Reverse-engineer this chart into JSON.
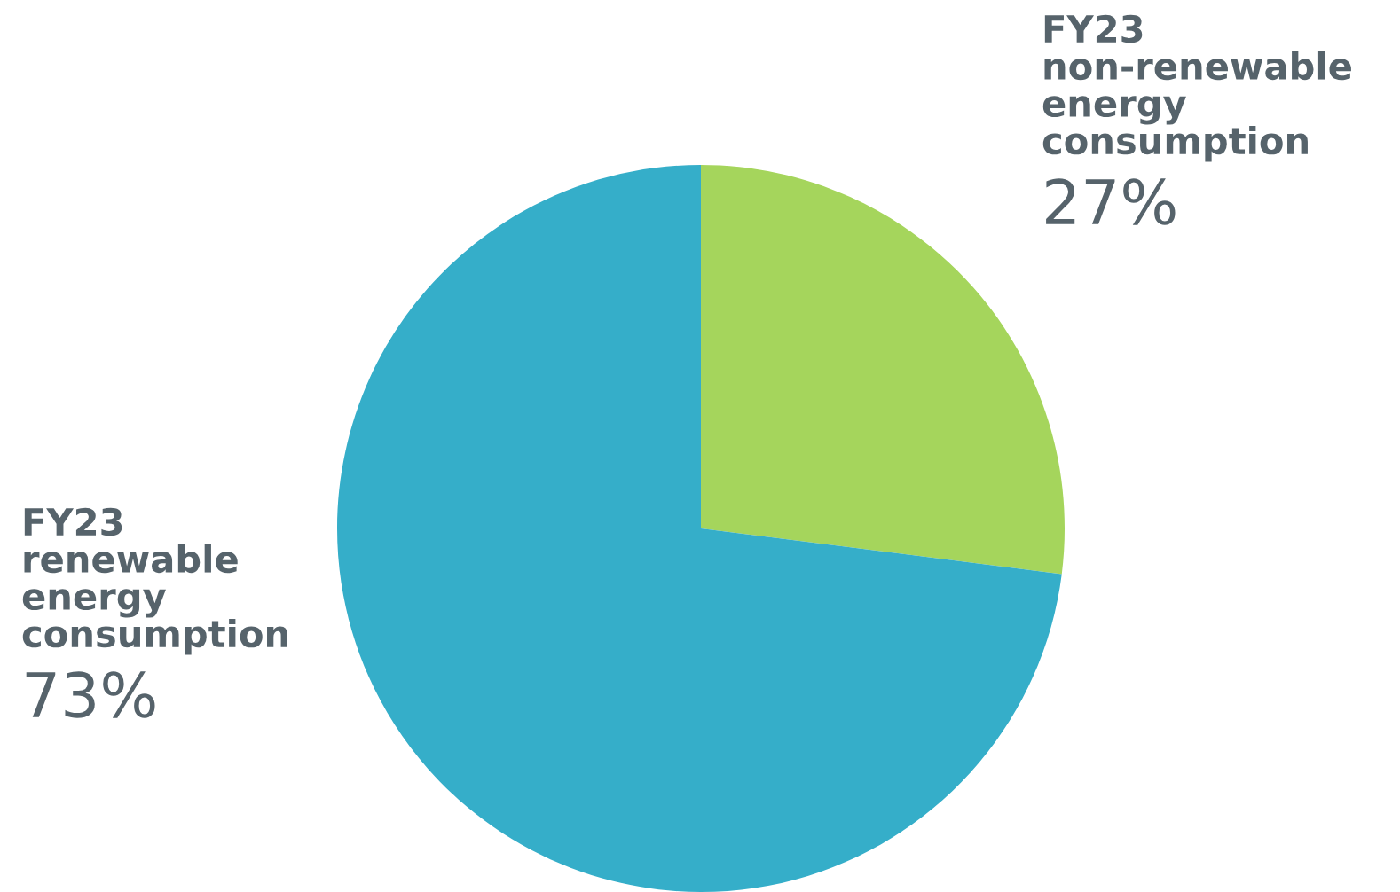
{
  "chart_data": {
    "type": "pie",
    "categories": [
      "FY23\nnon-renewable\nenergy\nconsumption",
      "FY23\nrenewable\nenergy\nconsumption"
    ],
    "values": [
      27,
      73
    ],
    "colors": [
      "#a5d55c",
      "#35aec9"
    ],
    "value_labels": [
      "27%",
      "73%"
    ]
  }
}
